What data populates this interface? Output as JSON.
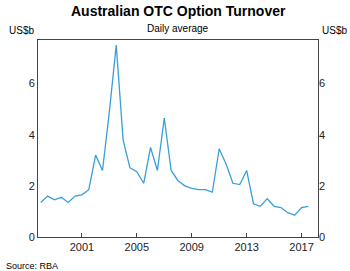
{
  "chart_data": {
    "type": "line",
    "title": "Australian OTC Option Turnover",
    "subtitle": "Daily average",
    "y_label": "US$b",
    "y2_label": "US$b",
    "source": "Source: RBA",
    "color": "#3a9fd8",
    "grid": false,
    "x": [
      1998.0,
      1998.5,
      1999.0,
      1999.5,
      2000.0,
      2000.5,
      2001.0,
      2001.5,
      2002.0,
      2002.5,
      2003.0,
      2003.5,
      2004.0,
      2004.5,
      2005.0,
      2005.5,
      2006.0,
      2006.5,
      2007.0,
      2007.5,
      2008.0,
      2008.5,
      2009.0,
      2009.5,
      2010.0,
      2010.5,
      2011.0,
      2011.5,
      2012.0,
      2012.5,
      2013.0,
      2013.5,
      2014.0,
      2014.5,
      2015.0,
      2015.5,
      2016.0,
      2016.5,
      2017.0,
      2017.5
    ],
    "values": [
      1.35,
      1.6,
      1.45,
      1.55,
      1.35,
      1.6,
      1.65,
      1.85,
      3.2,
      2.6,
      4.9,
      7.5,
      3.8,
      2.7,
      2.55,
      2.1,
      3.5,
      2.6,
      4.65,
      2.6,
      2.2,
      2.0,
      1.9,
      1.85,
      1.85,
      1.75,
      3.45,
      2.85,
      2.1,
      2.05,
      2.6,
      1.3,
      1.2,
      1.5,
      1.2,
      1.15,
      0.95,
      0.85,
      1.15,
      1.2
    ],
    "xlim": [
      1997.8,
      2018.2
    ],
    "xticks": [
      2001,
      2005,
      2009,
      2013,
      2017
    ],
    "ylim": [
      0,
      7.7
    ],
    "yticks": [
      0,
      2,
      4,
      6
    ],
    "y2lim": [
      0,
      7.7
    ],
    "y2ticks": [
      0,
      2,
      4,
      6
    ]
  }
}
